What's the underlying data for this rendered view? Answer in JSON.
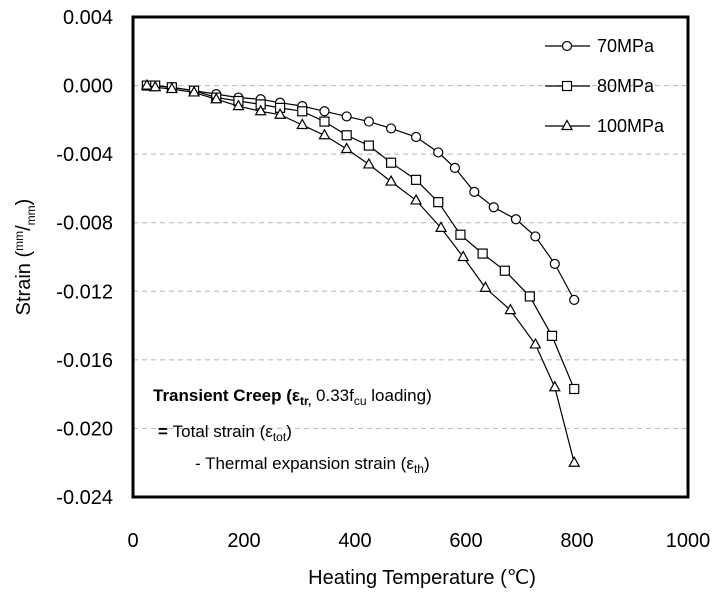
{
  "chart_data": {
    "type": "line",
    "title": "",
    "xlabel": "Heating Temperature (℃)",
    "ylabel": {
      "pre": "Strain (",
      "num": "mm",
      "slash": "/",
      "den": "mm",
      "post": ")"
    },
    "xlim": [
      0,
      1000
    ],
    "ylim": [
      -0.024,
      0.004
    ],
    "x_ticks": [
      "0",
      "200",
      "400",
      "600",
      "800",
      "1000"
    ],
    "y_ticks": [
      "0.004",
      "0.000",
      "-0.004",
      "-0.008",
      "-0.012",
      "-0.016",
      "-0.020",
      "-0.024"
    ],
    "grid": "horizontal dashed",
    "legend_position": "top-right",
    "series": [
      {
        "name": "70MPa",
        "marker": "circle",
        "x": [
          25,
          40,
          70,
          110,
          150,
          190,
          230,
          265,
          305,
          345,
          385,
          425,
          465,
          510,
          550,
          580,
          615,
          650,
          690,
          725,
          760,
          795
        ],
        "y": [
          0.0,
          0.0,
          -0.0001,
          -0.0003,
          -0.0005,
          -0.0007,
          -0.0008,
          -0.001,
          -0.0012,
          -0.0015,
          -0.0018,
          -0.0021,
          -0.0025,
          -0.003,
          -0.0039,
          -0.0048,
          -0.0062,
          -0.0071,
          -0.0078,
          -0.0088,
          -0.0104,
          -0.0125
        ]
      },
      {
        "name": "80MPa",
        "marker": "square",
        "x": [
          25,
          40,
          70,
          110,
          150,
          190,
          230,
          265,
          305,
          345,
          385,
          425,
          465,
          510,
          550,
          590,
          630,
          670,
          715,
          755,
          795
        ],
        "y": [
          0.0,
          0.0,
          -0.0001,
          -0.0003,
          -0.0007,
          -0.0009,
          -0.0011,
          -0.0013,
          -0.0015,
          -0.0021,
          -0.0029,
          -0.0035,
          -0.0045,
          -0.0055,
          -0.0068,
          -0.0087,
          -0.0098,
          -0.0108,
          -0.0123,
          -0.0146,
          -0.0177
        ]
      },
      {
        "name": "100MPa",
        "marker": "triangle",
        "x": [
          25,
          40,
          70,
          110,
          150,
          190,
          230,
          265,
          305,
          345,
          385,
          425,
          465,
          510,
          555,
          595,
          635,
          680,
          725,
          760,
          795
        ],
        "y": [
          0.0,
          -0.0001,
          -0.0002,
          -0.0004,
          -0.0008,
          -0.0012,
          -0.0015,
          -0.0017,
          -0.0023,
          -0.0029,
          -0.0037,
          -0.0046,
          -0.0056,
          -0.0067,
          -0.0083,
          -0.01,
          -0.0118,
          -0.0131,
          -0.0151,
          -0.0176,
          -0.022
        ]
      }
    ],
    "annotation": {
      "line1_bold": "Transient Creep (",
      "line1_eps": "ε",
      "line1_eps_sub": "tr,",
      "line1_mid": " 0.33f",
      "line1_f_sub": "cu",
      "line1_end": " loading)",
      "line2_eq": "= ",
      "line2_text": "Total strain (",
      "line2_eps": "ε",
      "line2_sub": "tot",
      "line2_close": ")",
      "line3_text": "- Thermal expansion strain (",
      "line3_eps": "ε",
      "line3_sub": "th",
      "line3_close": ")"
    }
  }
}
